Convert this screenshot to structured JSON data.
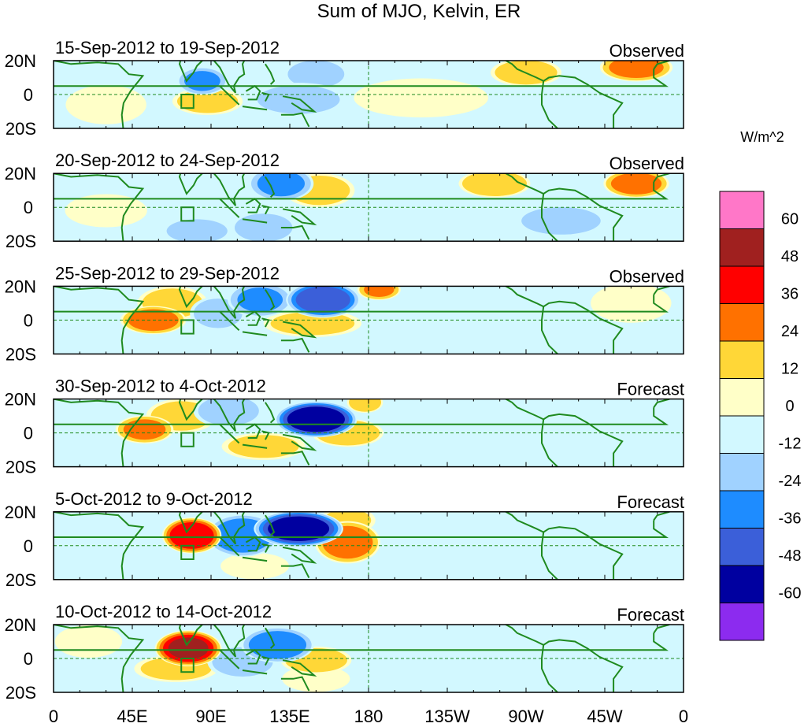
{
  "chart_data": {
    "type": "heatmap",
    "title": "Sum of MJO, Kelvin, ER",
    "colorbar_units": "W/m^2",
    "colorbar_levels": [
      60,
      48,
      36,
      24,
      12,
      0,
      -12,
      -24,
      -36,
      -48,
      -60
    ],
    "colorbar_colors": [
      "#ff77c8",
      "#a0201f",
      "#ff0000",
      "#ff7100",
      "#ffd737",
      "#ffffc8",
      "#d2f8ff",
      "#a0d2ff",
      "#1e8cff",
      "#3b5fd9",
      "#0000a0",
      "#8c2bef"
    ],
    "x_ticks": [
      "0",
      "45E",
      "90E",
      "135E",
      "180",
      "135W",
      "90W",
      "45W",
      "0"
    ],
    "x_values": [
      0,
      45,
      90,
      135,
      180,
      225,
      270,
      315,
      360
    ],
    "y_ticks": [
      "20N",
      "0",
      "20S"
    ],
    "y_values": [
      20,
      0,
      -20
    ],
    "xlim": [
      0,
      360
    ],
    "ylim": [
      -20,
      20
    ],
    "map_outline_color": "#1f8a1f",
    "panels": [
      {
        "date_range": "15-Sep-2012 to 19-Sep-2012",
        "kind": "Observed",
        "anomalies": [
          {
            "lon": 85,
            "lat": 8,
            "value": -25,
            "sx": 7,
            "sy": 4
          },
          {
            "lon": 88,
            "lat": -4,
            "value": 16,
            "sx": 10,
            "sy": 4
          },
          {
            "lon": 140,
            "lat": -3,
            "value": -14,
            "sx": 14,
            "sy": 5
          },
          {
            "lon": 150,
            "lat": 12,
            "value": -12,
            "sx": 10,
            "sy": 5
          },
          {
            "lon": 270,
            "lat": 13,
            "value": 18,
            "sx": 10,
            "sy": 4
          },
          {
            "lon": 333,
            "lat": 16,
            "value": 28,
            "sx": 10,
            "sy": 4
          },
          {
            "lon": 210,
            "lat": -2,
            "value": 9,
            "sx": 20,
            "sy": 6
          },
          {
            "lon": 300,
            "lat": -6,
            "value": -10,
            "sx": 14,
            "sy": 6
          },
          {
            "lon": 30,
            "lat": -6,
            "value": 9,
            "sx": 12,
            "sy": 6
          },
          {
            "lon": 30,
            "lat": 12,
            "value": -8,
            "sx": 12,
            "sy": 5
          }
        ]
      },
      {
        "date_range": "20-Sep-2012 to 24-Sep-2012",
        "kind": "Observed",
        "anomalies": [
          {
            "lon": 130,
            "lat": 14,
            "value": -26,
            "sx": 9,
            "sy": 5
          },
          {
            "lon": 152,
            "lat": 10,
            "value": 16,
            "sx": 10,
            "sy": 5
          },
          {
            "lon": 252,
            "lat": 14,
            "value": 22,
            "sx": 10,
            "sy": 4
          },
          {
            "lon": 333,
            "lat": 14,
            "value": 30,
            "sx": 9,
            "sy": 4
          },
          {
            "lon": 82,
            "lat": -14,
            "value": -16,
            "sx": 10,
            "sy": 4
          },
          {
            "lon": 120,
            "lat": -12,
            "value": -13,
            "sx": 10,
            "sy": 5
          },
          {
            "lon": 30,
            "lat": -2,
            "value": 11,
            "sx": 12,
            "sy": 5
          },
          {
            "lon": 220,
            "lat": 8,
            "value": -10,
            "sx": 14,
            "sy": 5
          },
          {
            "lon": 290,
            "lat": -8,
            "value": -12,
            "sx": 14,
            "sy": 5
          }
        ]
      },
      {
        "date_range": "25-Sep-2012 to 29-Sep-2012",
        "kind": "Observed",
        "anomalies": [
          {
            "lon": 154,
            "lat": 12,
            "value": -45,
            "sx": 10,
            "sy": 5
          },
          {
            "lon": 118,
            "lat": 12,
            "value": -24,
            "sx": 9,
            "sy": 5
          },
          {
            "lon": 57,
            "lat": 0,
            "value": 30,
            "sx": 9,
            "sy": 4
          },
          {
            "lon": 68,
            "lat": 10,
            "value": 16,
            "sx": 10,
            "sy": 5
          },
          {
            "lon": 94,
            "lat": 4,
            "value": -16,
            "sx": 8,
            "sy": 5
          },
          {
            "lon": 148,
            "lat": -2,
            "value": 15,
            "sx": 14,
            "sy": 4
          },
          {
            "lon": 186,
            "lat": 18,
            "value": 24,
            "sx": 6,
            "sy": 3
          },
          {
            "lon": 246,
            "lat": 6,
            "value": -9,
            "sx": 16,
            "sy": 5
          },
          {
            "lon": 330,
            "lat": 10,
            "value": 9,
            "sx": 12,
            "sy": 6
          }
        ]
      },
      {
        "date_range": "30-Sep-2012 to 4-Oct-2012",
        "kind": "Forecast",
        "anomalies": [
          {
            "lon": 150,
            "lat": 8,
            "value": -58,
            "sx": 11,
            "sy": 5
          },
          {
            "lon": 73,
            "lat": 10,
            "value": 16,
            "sx": 10,
            "sy": 5
          },
          {
            "lon": 52,
            "lat": 2,
            "value": 26,
            "sx": 8,
            "sy": 4
          },
          {
            "lon": 100,
            "lat": 13,
            "value": -16,
            "sx": 10,
            "sy": 5
          },
          {
            "lon": 168,
            "lat": 0,
            "value": 22,
            "sx": 10,
            "sy": 4
          },
          {
            "lon": 120,
            "lat": -8,
            "value": 14,
            "sx": 12,
            "sy": 4
          },
          {
            "lon": 178,
            "lat": 18,
            "value": 22,
            "sx": 5,
            "sy": 3
          },
          {
            "lon": 250,
            "lat": -4,
            "value": -10,
            "sx": 16,
            "sy": 6
          },
          {
            "lon": 20,
            "lat": -12,
            "value": -9,
            "sx": 12,
            "sy": 5
          }
        ]
      },
      {
        "date_range": "5-Oct-2012 to 9-Oct-2012",
        "kind": "Forecast",
        "anomalies": [
          {
            "lon": 79,
            "lat": 6,
            "value": 46,
            "sx": 8,
            "sy": 5
          },
          {
            "lon": 140,
            "lat": 10,
            "value": -56,
            "sx": 12,
            "sy": 5
          },
          {
            "lon": 108,
            "lat": 6,
            "value": -34,
            "sx": 10,
            "sy": 6
          },
          {
            "lon": 168,
            "lat": 2,
            "value": 30,
            "sx": 9,
            "sy": 6
          },
          {
            "lon": 168,
            "lat": 15,
            "value": 14,
            "sx": 8,
            "sy": 4
          },
          {
            "lon": 115,
            "lat": -12,
            "value": 11,
            "sx": 10,
            "sy": 4
          },
          {
            "lon": 245,
            "lat": 4,
            "value": -9,
            "sx": 18,
            "sy": 6
          },
          {
            "lon": 310,
            "lat": -12,
            "value": -11,
            "sx": 14,
            "sy": 5
          },
          {
            "lon": 20,
            "lat": 0,
            "value": -8,
            "sx": 12,
            "sy": 6
          }
        ]
      },
      {
        "date_range": "10-Oct-2012 to 14-Oct-2012",
        "kind": "Forecast",
        "anomalies": [
          {
            "lon": 77,
            "lat": 6,
            "value": 48,
            "sx": 9,
            "sy": 5
          },
          {
            "lon": 70,
            "lat": -6,
            "value": 14,
            "sx": 12,
            "sy": 4
          },
          {
            "lon": 128,
            "lat": 8,
            "value": -32,
            "sx": 10,
            "sy": 5
          },
          {
            "lon": 108,
            "lat": -2,
            "value": -16,
            "sx": 10,
            "sy": 5
          },
          {
            "lon": 150,
            "lat": -1,
            "value": 18,
            "sx": 10,
            "sy": 4
          },
          {
            "lon": 150,
            "lat": -12,
            "value": 10,
            "sx": 10,
            "sy": 4
          },
          {
            "lon": 240,
            "lat": 6,
            "value": -9,
            "sx": 16,
            "sy": 5
          },
          {
            "lon": 300,
            "lat": -6,
            "value": -9,
            "sx": 14,
            "sy": 6
          },
          {
            "lon": 20,
            "lat": 10,
            "value": 9,
            "sx": 10,
            "sy": 5
          }
        ]
      }
    ]
  }
}
